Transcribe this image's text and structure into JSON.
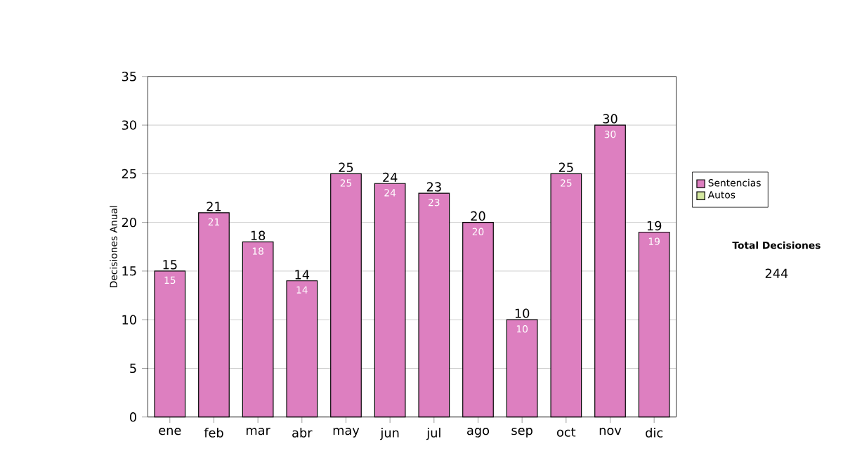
{
  "chart_data": {
    "type": "bar",
    "stacked": true,
    "ylabel": "Decisiones Anual",
    "categories": [
      "ene",
      "feb",
      "mar",
      "abr",
      "may",
      "jun",
      "jul",
      "ago",
      "sep",
      "oct",
      "nov",
      "dic"
    ],
    "series": [
      {
        "name": "Sentencias",
        "color": "#dd7fc0",
        "values": [
          15,
          21,
          18,
          14,
          25,
          24,
          23,
          20,
          10,
          25,
          30,
          19
        ],
        "value_labels": [
          "15",
          "21",
          "18",
          "14",
          "25",
          "24",
          "23",
          "20",
          "10",
          "25",
          "30",
          "19"
        ]
      },
      {
        "name": "Autos",
        "color": "#d4e8a0",
        "values": [
          0,
          0,
          0,
          0,
          0,
          0,
          0,
          0,
          0,
          0,
          0,
          0
        ]
      }
    ],
    "totals": [
      "15",
      "21",
      "18",
      "14",
      "25",
      "24",
      "23",
      "20",
      "10",
      "25",
      "30",
      "19"
    ],
    "ylim": [
      0,
      35
    ],
    "yticks": [
      0,
      5,
      10,
      15,
      20,
      25,
      30,
      35
    ],
    "grid": "y",
    "legend": "right",
    "annotations": [
      "Total Decisiones",
      "244"
    ]
  }
}
